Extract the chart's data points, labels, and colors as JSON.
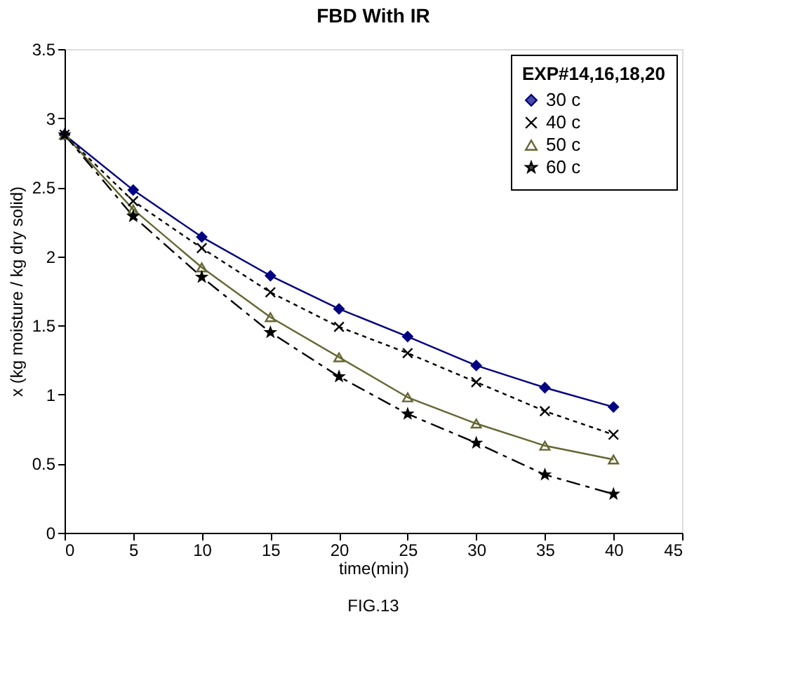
{
  "chart_data": {
    "type": "line",
    "title": "FBD With IR",
    "xlabel": "time(min)",
    "ylabel": "x (kg moisture / kg dry solid)",
    "legend_title": "EXP#14,16,18,20",
    "legend": "top right",
    "grid": false,
    "x": [
      0,
      5,
      10,
      15,
      20,
      25,
      30,
      35,
      40
    ],
    "xlim": [
      0,
      45
    ],
    "xticks": [
      0,
      5,
      10,
      15,
      20,
      25,
      30,
      35,
      40,
      45
    ],
    "ylim": [
      0,
      3.5
    ],
    "yticks": [
      0,
      0.5,
      1,
      1.5,
      2,
      2.5,
      3,
      3.5
    ],
    "series": [
      {
        "name": "30 c",
        "color": "#000080",
        "marker": "diamond",
        "line_style": "solid",
        "values": [
          2.88,
          2.48,
          2.14,
          1.86,
          1.62,
          1.42,
          1.21,
          1.05,
          0.91
        ]
      },
      {
        "name": "40 c",
        "color": "#000000",
        "marker": "cross",
        "line_style": "dotted",
        "values": [
          2.88,
          2.4,
          2.06,
          1.74,
          1.49,
          1.3,
          1.09,
          0.88,
          0.71
        ]
      },
      {
        "name": "50 c",
        "color": "#666633",
        "marker": "triangle",
        "line_style": "solid",
        "values": [
          2.88,
          2.34,
          1.92,
          1.56,
          1.27,
          0.98,
          0.79,
          0.63,
          0.53
        ]
      },
      {
        "name": "60 c",
        "color": "#000000",
        "marker": "star",
        "line_style": "dashed",
        "values": [
          2.88,
          2.29,
          1.85,
          1.45,
          1.13,
          0.86,
          0.65,
          0.42,
          0.28
        ]
      }
    ],
    "annotations": [
      "FIG.13"
    ]
  }
}
